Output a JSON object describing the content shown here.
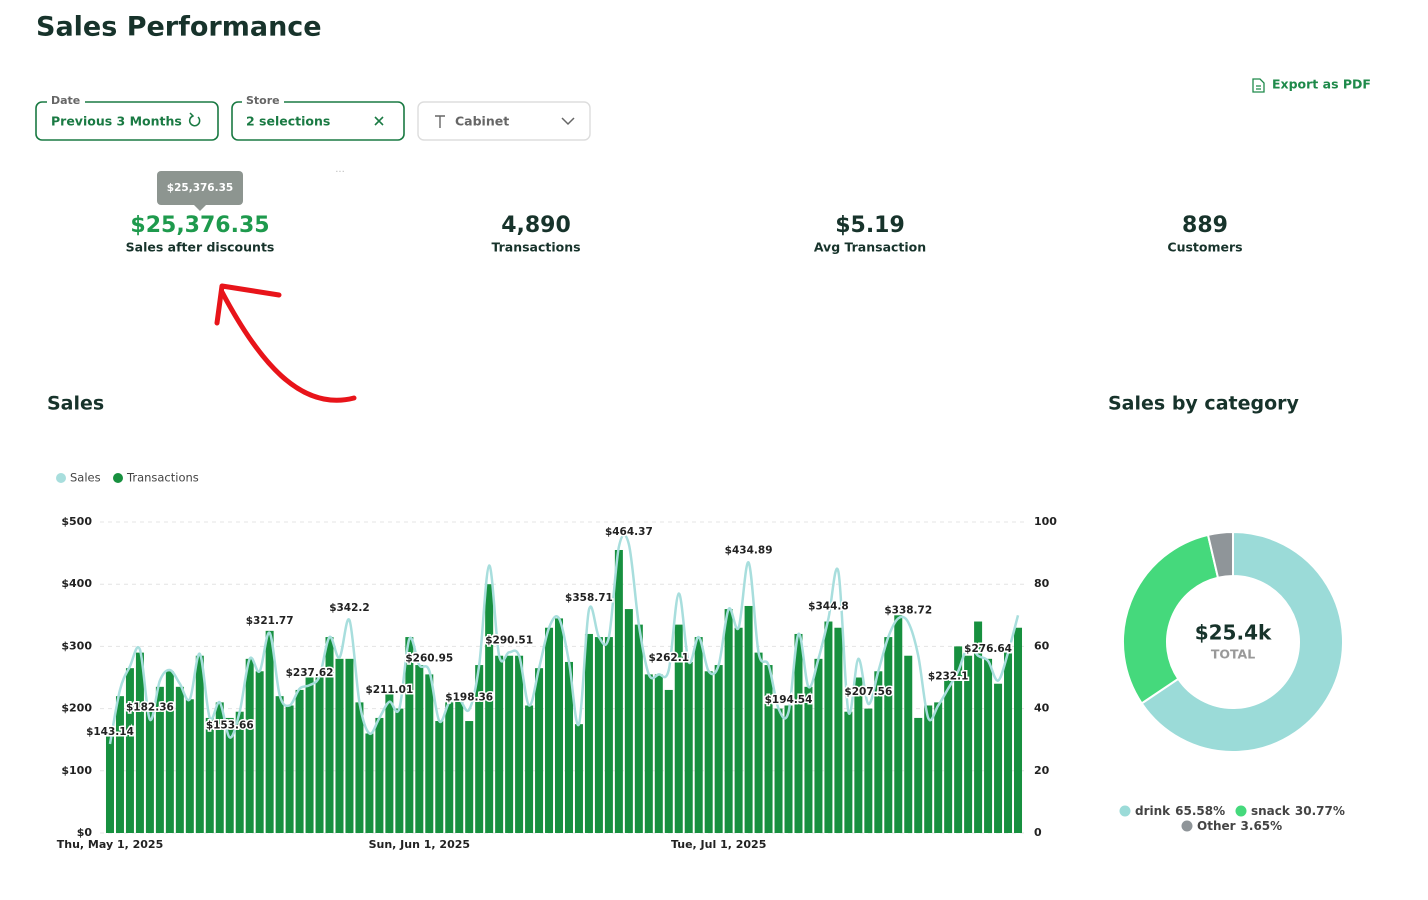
{
  "header": {
    "title": "Sales Performance",
    "export": "Export as PDF"
  },
  "filters": [
    {
      "label": "Date",
      "value": "Previous 3 Months"
    },
    {
      "label": "Store",
      "value": "2 selections"
    },
    {
      "value": "Cabinet"
    }
  ],
  "tooltip": "$25,376.35",
  "kpis": [
    {
      "value": "$25,376.35",
      "label": "Sales after discounts"
    },
    {
      "value": "4,890",
      "label": "Transactions"
    },
    {
      "value": "$5.19",
      "label": "Avg Transaction"
    },
    {
      "value": "889",
      "label": "Customers"
    }
  ],
  "chart_data": [
    {
      "type": "combo",
      "title": "Sales",
      "categories": [
        "Thu, May 1, 2025",
        null,
        null,
        null,
        null,
        null,
        null,
        null,
        null,
        null,
        null,
        null,
        null,
        null,
        null,
        null,
        null,
        null,
        null,
        null,
        null,
        null,
        null,
        null,
        null,
        null,
        null,
        null,
        null,
        null,
        null,
        "Sun, Jun 1, 2025",
        null,
        null,
        null,
        null,
        null,
        null,
        null,
        null,
        null,
        null,
        null,
        null,
        null,
        null,
        null,
        null,
        null,
        null,
        null,
        null,
        null,
        null,
        null,
        null,
        null,
        null,
        null,
        null,
        null,
        "Tue, Jul 1, 2025",
        null,
        null,
        null,
        null,
        null,
        null,
        null,
        null,
        null,
        null,
        null,
        null,
        null,
        null,
        null,
        null,
        null,
        null,
        null,
        null,
        null,
        null,
        null,
        null,
        null,
        null,
        null,
        null,
        null,
        null
      ],
      "series": [
        {
          "name": "Sales",
          "color": "#a8dedd",
          "type": "line",
          "values": [
            143.14,
            230,
            268,
            295,
            182.36,
            245,
            262,
            240,
            215,
            288,
            185,
            210,
            153.66,
            195,
            280,
            260,
            321.77,
            222,
            205,
            232,
            237.62,
            252,
            315,
            282,
            342.2,
            210,
            160,
            185,
            211.01,
            200,
            312,
            270,
            260.95,
            180,
            210,
            215,
            198.36,
            270,
            430,
            285,
            290.51,
            285,
            205,
            265,
            330,
            345,
            275,
            175,
            358.71,
            315,
            315,
            460,
            464.37,
            335,
            255,
            255,
            262.1,
            385,
            275,
            315,
            260,
            270,
            360,
            330,
            434.89,
            290,
            270,
            200,
            194.54,
            320,
            235,
            280,
            344.8,
            420,
            195,
            280,
            207.56,
            260,
            315,
            345,
            338.72,
            285,
            185,
            205,
            232.1,
            260,
            300,
            285,
            276.64,
            245,
            290,
            350
          ],
          "value_labels": [
            "$143.14",
            null,
            null,
            null,
            "$182.36",
            null,
            null,
            null,
            null,
            null,
            null,
            null,
            "$153.66",
            null,
            null,
            null,
            "$321.77",
            null,
            null,
            null,
            "$237.62",
            null,
            null,
            null,
            "$342.2",
            null,
            null,
            null,
            "$211.01",
            null,
            null,
            null,
            "$260.95",
            null,
            null,
            null,
            "$198.36",
            null,
            null,
            null,
            "$290.51",
            null,
            null,
            null,
            null,
            null,
            null,
            null,
            "$358.71",
            null,
            null,
            null,
            "$464.37",
            null,
            null,
            null,
            "$262.1",
            null,
            null,
            null,
            null,
            null,
            null,
            null,
            "$434.89",
            null,
            null,
            null,
            "$194.54",
            null,
            null,
            null,
            "$344.8",
            null,
            null,
            null,
            "$207.56",
            null,
            null,
            null,
            "$338.72",
            null,
            null,
            null,
            "$232.1",
            null,
            null,
            null,
            "$276.64",
            null,
            null,
            null
          ]
        },
        {
          "name": "Transactions",
          "color": "#17903f",
          "type": "bar",
          "axis": "y2",
          "values": [
            31,
            44,
            53,
            58,
            39,
            47,
            52,
            47,
            43,
            57,
            37,
            42,
            37,
            39,
            56,
            52,
            65,
            44,
            41,
            46,
            50,
            50,
            63,
            56,
            56,
            42,
            32,
            37,
            45,
            40,
            63,
            54,
            51,
            36,
            42,
            43,
            36,
            54,
            80,
            57,
            57,
            57,
            41,
            53,
            66,
            69,
            55,
            35,
            64,
            63,
            63,
            91,
            72,
            67,
            51,
            51,
            46,
            67,
            55,
            63,
            52,
            54,
            72,
            66,
            73,
            58,
            54,
            40,
            41,
            64,
            47,
            56,
            68,
            66,
            39,
            50,
            40,
            52,
            63,
            70,
            57,
            37,
            41,
            42,
            52,
            60,
            57,
            68,
            56,
            48,
            58,
            66
          ]
        }
      ],
      "ylim": [
        0,
        500
      ],
      "yticks": [
        {
          "value": 0,
          "label": "$0"
        },
        {
          "value": 100,
          "label": "$100"
        },
        {
          "value": 200,
          "label": "$200"
        },
        {
          "value": 300,
          "label": "$300"
        },
        {
          "value": 400,
          "label": "$400"
        },
        {
          "value": 500,
          "label": "$500"
        }
      ],
      "y2lim": [
        0,
        100
      ],
      "y2ticks": [
        0,
        20,
        40,
        60,
        80,
        100
      ],
      "grid": true,
      "legend": "top-left"
    },
    {
      "type": "donut",
      "title": "Sales by category",
      "categories": [
        "drink",
        "snack",
        "Other"
      ],
      "values": [
        65.58,
        30.77,
        3.65
      ],
      "value_labels": [
        "65.58%",
        "30.77%",
        "3.65%"
      ],
      "colors": [
        "#9bdbd8",
        "#45d97c",
        "#8f9599"
      ],
      "center_label": "$25.4k",
      "center_sublabel": "TOTAL",
      "legend": "bottom"
    }
  ]
}
